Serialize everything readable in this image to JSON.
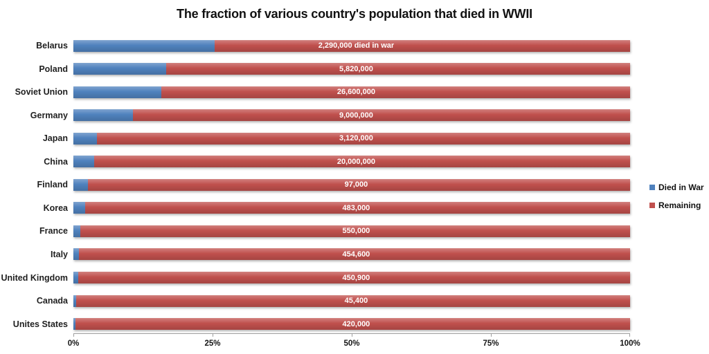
{
  "chart_data": {
    "type": "bar",
    "orientation": "horizontal",
    "stacked": true,
    "stacked_100_percent": true,
    "title": "The fraction of various country's population that died in WWII",
    "categories": [
      "Belarus",
      "Poland",
      "Soviet Union",
      "Germany",
      "Japan",
      "China",
      "Finland",
      "Korea",
      "France",
      "Italy",
      "United Kingdom",
      "Canada",
      "Unites States"
    ],
    "series": [
      {
        "name": "Died in War",
        "color": "#4f81bd",
        "values_pct": [
          25.4,
          16.7,
          15.8,
          10.7,
          4.2,
          3.7,
          2.6,
          2.1,
          1.2,
          1.0,
          0.9,
          0.5,
          0.4
        ]
      },
      {
        "name": "Remaining",
        "color": "#c0504d",
        "values_pct": [
          74.6,
          83.3,
          84.2,
          89.3,
          95.8,
          96.3,
          97.4,
          97.9,
          98.8,
          99.0,
          99.1,
          99.5,
          99.6
        ]
      }
    ],
    "bar_labels": [
      "2,290,000 died in war",
      "5,820,000",
      "26,600,000",
      "9,000,000",
      "3,120,000",
      "20,000,000",
      "97,000",
      "483,000",
      "550,000",
      "454,600",
      "450,900",
      "45,400",
      "420,000"
    ],
    "xlim": [
      0,
      100
    ],
    "x_tick_labels": [
      "0%",
      "25%",
      "50%",
      "75%",
      "100%"
    ],
    "legend_position": "right",
    "gridlines": false,
    "background_color": "#ffffff",
    "bar_label_color": "#ffffff",
    "axis_line_color": "#9d9d9d"
  },
  "legend": {
    "items": [
      {
        "label": "Died in War",
        "color": "#4f81bd"
      },
      {
        "label": "Remaining",
        "color": "#c0504d"
      }
    ]
  }
}
